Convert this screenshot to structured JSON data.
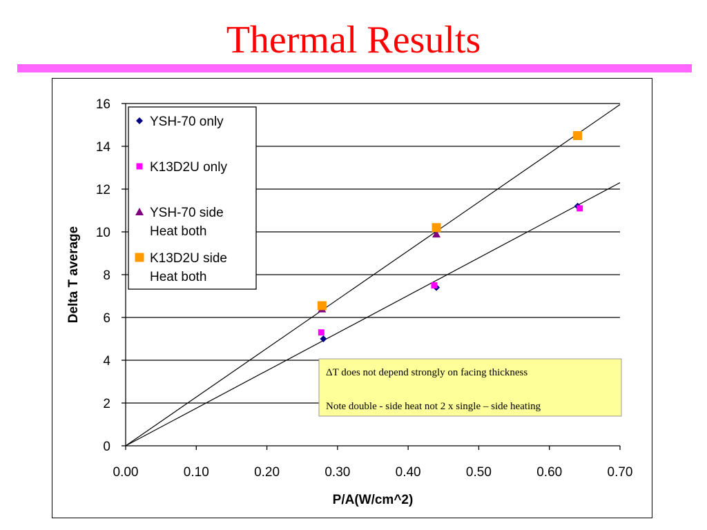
{
  "slide": {
    "title": "Thermal Results",
    "title_color": "#ff0000",
    "rule_color": "#ff66ff"
  },
  "chart_data": {
    "type": "scatter",
    "xlabel": "P/A(W/cm^2)",
    "ylabel": "Delta T average",
    "xlim": [
      0,
      0.7
    ],
    "ylim": [
      0,
      16
    ],
    "x_ticks": [
      "0.00",
      "0.10",
      "0.20",
      "0.30",
      "0.40",
      "0.50",
      "0.60",
      "0.70"
    ],
    "y_ticks": [
      "0",
      "2",
      "4",
      "6",
      "8",
      "10",
      "12",
      "14",
      "16"
    ],
    "grid": "horizontal",
    "legend_position": "top-left",
    "series": [
      {
        "name": [
          "YSH-70 only"
        ],
        "marker": "diamond",
        "color": "#000080",
        "points": [
          [
            0.28,
            5.0
          ],
          [
            0.44,
            7.4
          ],
          [
            0.64,
            11.2
          ]
        ]
      },
      {
        "name": [
          "K13D2U only"
        ],
        "marker": "square-small",
        "color": "#ff00ff",
        "points": [
          [
            0.277,
            5.3
          ],
          [
            0.437,
            7.5
          ],
          [
            0.643,
            11.1
          ]
        ]
      },
      {
        "name": [
          "YSH-70 side",
          "Heat both"
        ],
        "marker": "triangle",
        "color": "#800080",
        "points": [
          [
            0.278,
            6.4
          ],
          [
            0.44,
            9.9
          ]
        ]
      },
      {
        "name": [
          "K13D2U side",
          "Heat both"
        ],
        "marker": "square",
        "color": "#ff9900",
        "points": [
          [
            0.278,
            6.55
          ],
          [
            0.44,
            10.2
          ],
          [
            0.64,
            14.5
          ]
        ]
      }
    ],
    "lines": [
      {
        "x": [
          0,
          0.7
        ],
        "y": [
          0,
          15.95
        ]
      },
      {
        "x": [
          0,
          0.7
        ],
        "y": [
          0,
          12.3
        ]
      }
    ],
    "annotation": {
      "lines": [
        "ΔT does not depend strongly on facing  thickness",
        "Note double - side heat not 2 x single – side heating"
      ],
      "background": "#ffff99"
    }
  }
}
